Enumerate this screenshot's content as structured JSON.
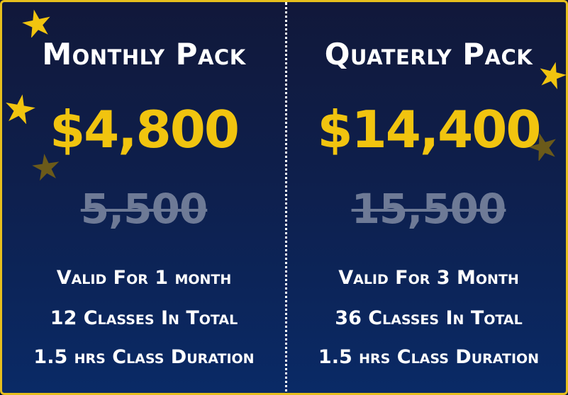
{
  "colors": {
    "background_top": "#11183a",
    "background_bottom": "#0a2a66",
    "border": "#e6bf1d",
    "price": "#f1c40f",
    "old_price": "#6e7a96",
    "text": "#ffffff",
    "star_bright": "#f1c40f",
    "star_dim": "#6b5a1a"
  },
  "plans": [
    {
      "title": "Monthly Pack",
      "price": "$4,800",
      "old_price": "5,500",
      "features": [
        "Valid For 1 month",
        "12 Classes In Total",
        "1.5 hrs Class Duration"
      ]
    },
    {
      "title": "Quaterly Pack",
      "price": "$14,400",
      "old_price": "15,500",
      "features": [
        "Valid For 3 Month",
        "36 Classes In Total",
        "1.5 hrs Class Duration"
      ]
    }
  ],
  "decorations": {
    "icon": "star-icon"
  }
}
